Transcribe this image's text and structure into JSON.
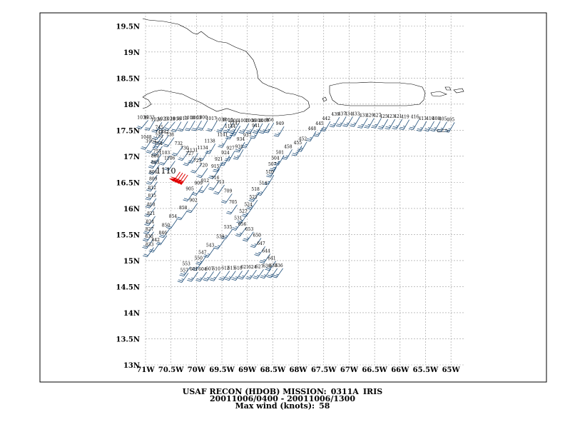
{
  "caption": {
    "title": "USAF RECON (HDOB) MISSION:",
    "mission": "0311A",
    "storm": "IRIS",
    "period": "20011006/0400 - 20011006/1300",
    "max_wind_label": "Max wind (knots):",
    "max_wind_value": "58"
  },
  "map": {
    "lat_range": [
      13,
      19.75
    ],
    "lon_range": [
      -71,
      -64.75
    ],
    "y_ticks": [
      {
        "lat": 19.5,
        "label": "19.5N"
      },
      {
        "lat": 19,
        "label": "19N"
      },
      {
        "lat": 18.5,
        "label": "18.5N"
      },
      {
        "lat": 18,
        "label": "18N"
      },
      {
        "lat": 17.5,
        "label": "17.5N"
      },
      {
        "lat": 17,
        "label": "17N"
      },
      {
        "lat": 16.5,
        "label": "16.5N"
      },
      {
        "lat": 16,
        "label": "16N"
      },
      {
        "lat": 15.5,
        "label": "15.5N"
      },
      {
        "lat": 15,
        "label": "15N"
      },
      {
        "lat": 14.5,
        "label": "14.5N"
      },
      {
        "lat": 14,
        "label": "14N"
      },
      {
        "lat": 13.5,
        "label": "13.5N"
      },
      {
        "lat": 13,
        "label": "13N"
      }
    ],
    "x_ticks": [
      {
        "lon": -71,
        "label": "71W"
      },
      {
        "lon": -70.5,
        "label": "70.5W"
      },
      {
        "lon": -70,
        "label": "70W"
      },
      {
        "lon": -69.5,
        "label": "69.5W"
      },
      {
        "lon": -69,
        "label": "69W"
      },
      {
        "lon": -68.5,
        "label": "68.5W"
      },
      {
        "lon": -68,
        "label": "68W"
      },
      {
        "lon": -67.5,
        "label": "67.5W"
      },
      {
        "lon": -67,
        "label": "67W"
      },
      {
        "lon": -66.5,
        "label": "66.5W"
      },
      {
        "lon": -66,
        "label": "66W"
      },
      {
        "lon": -65.5,
        "label": "65.5W"
      },
      {
        "lon": -65,
        "label": "65W"
      }
    ],
    "grid": true,
    "colors": {
      "barb": "#1f4e79",
      "max_barb": "#e00000",
      "coast": "#000000",
      "grid": "#9a9a9a"
    },
    "max_label": "1110"
  },
  "observations": [
    {
      "t": "1036",
      "lat": 17.69,
      "lon": -70.95,
      "d": 220,
      "s": 20
    },
    {
      "t": "1033",
      "lat": 17.69,
      "lon": -70.82,
      "d": 210,
      "s": 20
    },
    {
      "t": "1026",
      "lat": 17.65,
      "lon": -70.68,
      "d": 210,
      "s": 20
    },
    {
      "t": "1023",
      "lat": 17.66,
      "lon": -70.55,
      "d": 220,
      "s": 20
    },
    {
      "t": "1020",
      "lat": 17.66,
      "lon": -70.42,
      "d": 220,
      "s": 20
    },
    {
      "t": "1016",
      "lat": 17.66,
      "lon": -70.3,
      "d": 210,
      "s": 20
    },
    {
      "t": "1013",
      "lat": 17.67,
      "lon": -70.17,
      "d": 210,
      "s": 20
    },
    {
      "t": "1010",
      "lat": 17.68,
      "lon": -70.03,
      "d": 210,
      "s": 20
    },
    {
      "t": "1003",
      "lat": 17.68,
      "lon": -69.9,
      "d": 210,
      "s": 20
    },
    {
      "t": "1000",
      "lat": 17.69,
      "lon": -69.78,
      "d": 210,
      "s": 20
    },
    {
      "t": "1017",
      "lat": 17.67,
      "lon": -69.6,
      "d": 210,
      "s": 20
    },
    {
      "t": "1030",
      "lat": 17.65,
      "lon": -69.41,
      "d": 210,
      "s": 25
    },
    {
      "t": "1010",
      "lat": 17.64,
      "lon": -69.28,
      "d": 210,
      "s": 25
    },
    {
      "t": "1000",
      "lat": 17.63,
      "lon": -69.17,
      "d": 210,
      "s": 25
    },
    {
      "t": "1003",
      "lat": 17.63,
      "lon": -68.97,
      "d": 210,
      "s": 25
    },
    {
      "t": "1006",
      "lat": 17.63,
      "lon": -68.83,
      "d": 210,
      "s": 25
    },
    {
      "t": "1008",
      "lat": 17.63,
      "lon": -68.7,
      "d": 210,
      "s": 25
    },
    {
      "t": "1009",
      "lat": 17.63,
      "lon": -68.57,
      "d": 210,
      "s": 25
    },
    {
      "t": "956",
      "lat": 17.64,
      "lon": -68.48,
      "d": 210,
      "s": 25
    },
    {
      "t": "949",
      "lat": 17.57,
      "lon": -68.28,
      "d": 210,
      "s": 25
    },
    {
      "t": "745",
      "lat": 17.5,
      "lon": -70.65,
      "d": 215,
      "s": 20
    },
    {
      "t": "748",
      "lat": 17.41,
      "lon": -70.65,
      "d": 215,
      "s": 20
    },
    {
      "t": "742",
      "lat": 17.41,
      "lon": -70.54,
      "d": 215,
      "s": 20
    },
    {
      "t": "751",
      "lat": 17.33,
      "lon": -70.65,
      "d": 215,
      "s": 20
    },
    {
      "t": "738",
      "lat": 17.36,
      "lon": -70.44,
      "d": 215,
      "s": 20
    },
    {
      "t": "1048",
      "lat": 17.31,
      "lon": -70.88,
      "d": 215,
      "s": 20
    },
    {
      "t": "1051",
      "lat": 17.24,
      "lon": -70.78,
      "d": 215,
      "s": 20
    },
    {
      "t": "754",
      "lat": 17.19,
      "lon": -70.67,
      "d": 215,
      "s": 20
    },
    {
      "t": "732",
      "lat": 17.19,
      "lon": -70.27,
      "d": 215,
      "s": 20
    },
    {
      "t": "757",
      "lat": 17.04,
      "lon": -70.69,
      "d": 215,
      "s": 20
    },
    {
      "t": "1103",
      "lat": 17.01,
      "lon": -70.52,
      "d": 215,
      "s": 20
    },
    {
      "t": "800",
      "lat": 16.95,
      "lon": -70.73,
      "d": 215,
      "s": 20
    },
    {
      "t": "1106",
      "lat": 16.91,
      "lon": -70.42,
      "d": 215,
      "s": 20
    },
    {
      "t": "803",
      "lat": 16.83,
      "lon": -70.73,
      "d": 215,
      "s": 20
    },
    {
      "t": "730",
      "lat": 17.1,
      "lon": -70.15,
      "d": 215,
      "s": 20
    },
    {
      "t": "727",
      "lat": 17.0,
      "lon": -70.05,
      "d": 215,
      "s": 20
    },
    {
      "t": "723",
      "lat": 16.86,
      "lon": -69.9,
      "d": 215,
      "s": 20
    },
    {
      "t": "1131",
      "lat": 17.06,
      "lon": -69.97,
      "d": 210,
      "s": 20
    },
    {
      "t": "1134",
      "lat": 17.11,
      "lon": -69.77,
      "d": 210,
      "s": 20
    },
    {
      "t": "1138",
      "lat": 17.24,
      "lon": -69.63,
      "d": 210,
      "s": 25
    },
    {
      "t": "1141",
      "lat": 17.36,
      "lon": -69.38,
      "d": 210,
      "s": 25
    },
    {
      "t": "1144",
      "lat": 17.52,
      "lon": -69.23,
      "d": 210,
      "s": 25
    },
    {
      "t": "1147",
      "lat": 17.58,
      "lon": -69.14,
      "d": 210,
      "s": 25
    },
    {
      "t": "720",
      "lat": 16.77,
      "lon": -69.78,
      "d": 215,
      "s": 20
    },
    {
      "t": "716",
      "lat": 16.53,
      "lon": -69.55,
      "d": 215,
      "s": 20
    },
    {
      "t": "713",
      "lat": 16.45,
      "lon": -69.45,
      "d": 215,
      "s": 20
    },
    {
      "t": "709",
      "lat": 16.28,
      "lon": -69.3,
      "d": 215,
      "s": 20
    },
    {
      "t": "705",
      "lat": 16.07,
      "lon": -69.2,
      "d": 215,
      "s": 20
    },
    {
      "t": "915",
      "lat": 16.75,
      "lon": -69.55,
      "d": 215,
      "s": 20
    },
    {
      "t": "912",
      "lat": 16.48,
      "lon": -69.75,
      "d": 215,
      "s": 20
    },
    {
      "t": "909",
      "lat": 16.43,
      "lon": -69.88,
      "d": 215,
      "s": 20
    },
    {
      "t": "905",
      "lat": 16.32,
      "lon": -70.05,
      "d": 215,
      "s": 20
    },
    {
      "t": "902",
      "lat": 16.1,
      "lon": -69.98,
      "d": 215,
      "s": 20
    },
    {
      "t": "858",
      "lat": 15.96,
      "lon": -70.18,
      "d": 215,
      "s": 20
    },
    {
      "t": "854",
      "lat": 15.79,
      "lon": -70.38,
      "d": 215,
      "s": 20
    },
    {
      "t": "850",
      "lat": 15.62,
      "lon": -70.52,
      "d": 215,
      "s": 20
    },
    {
      "t": "846",
      "lat": 15.48,
      "lon": -70.58,
      "d": 215,
      "s": 20
    },
    {
      "t": "842",
      "lat": 15.34,
      "lon": -70.72,
      "d": 215,
      "s": 20
    },
    {
      "t": "806",
      "lat": 16.64,
      "lon": -70.77,
      "d": 215,
      "s": 20
    },
    {
      "t": "809",
      "lat": 16.51,
      "lon": -70.77,
      "d": 215,
      "s": 20
    },
    {
      "t": "812",
      "lat": 16.34,
      "lon": -70.79,
      "d": 215,
      "s": 20
    },
    {
      "t": "815",
      "lat": 16.19,
      "lon": -70.79,
      "d": 215,
      "s": 20
    },
    {
      "t": "818",
      "lat": 16.02,
      "lon": -70.81,
      "d": 215,
      "s": 20
    },
    {
      "t": "821",
      "lat": 15.85,
      "lon": -70.81,
      "d": 215,
      "s": 20
    },
    {
      "t": "824",
      "lat": 15.69,
      "lon": -70.83,
      "d": 215,
      "s": 20
    },
    {
      "t": "827",
      "lat": 15.55,
      "lon": -70.84,
      "d": 215,
      "s": 20
    },
    {
      "t": "830",
      "lat": 15.41,
      "lon": -70.85,
      "d": 215,
      "s": 20
    },
    {
      "t": "833",
      "lat": 15.25,
      "lon": -70.84,
      "d": 215,
      "s": 20
    },
    {
      "t": "921",
      "lat": 16.89,
      "lon": -69.48,
      "d": 210,
      "s": 25
    },
    {
      "t": "924",
      "lat": 17.01,
      "lon": -69.35,
      "d": 210,
      "s": 25
    },
    {
      "t": "927",
      "lat": 17.1,
      "lon": -69.25,
      "d": 210,
      "s": 25
    },
    {
      "t": "931",
      "lat": 17.13,
      "lon": -69.08,
      "d": 210,
      "s": 25
    },
    {
      "t": "934",
      "lat": 17.27,
      "lon": -69.05,
      "d": 210,
      "s": 25
    },
    {
      "t": "937",
      "lat": 17.35,
      "lon": -68.92,
      "d": 210,
      "s": 25
    },
    {
      "t": "941",
      "lat": 17.53,
      "lon": -68.75,
      "d": 210,
      "s": 25
    },
    {
      "t": "452",
      "lat": 17.28,
      "lon": -67.83,
      "d": 210,
      "s": 25
    },
    {
      "t": "455",
      "lat": 17.2,
      "lon": -67.93,
      "d": 210,
      "s": 25
    },
    {
      "t": "458",
      "lat": 17.13,
      "lon": -68.12,
      "d": 210,
      "s": 25
    },
    {
      "t": "501",
      "lat": 17.02,
      "lon": -68.28,
      "d": 210,
      "s": 25
    },
    {
      "t": "504",
      "lat": 16.91,
      "lon": -68.37,
      "d": 210,
      "s": 25
    },
    {
      "t": "507",
      "lat": 16.79,
      "lon": -68.43,
      "d": 210,
      "s": 25
    },
    {
      "t": "510",
      "lat": 16.64,
      "lon": -68.48,
      "d": 210,
      "s": 25
    },
    {
      "t": "514",
      "lat": 16.43,
      "lon": -68.61,
      "d": 215,
      "s": 25
    },
    {
      "t": "518",
      "lat": 16.31,
      "lon": -68.76,
      "d": 215,
      "s": 25
    },
    {
      "t": "521",
      "lat": 16.16,
      "lon": -68.8,
      "d": 215,
      "s": 25
    },
    {
      "t": "524",
      "lat": 16.02,
      "lon": -68.9,
      "d": 215,
      "s": 25
    },
    {
      "t": "527",
      "lat": 15.89,
      "lon": -69.0,
      "d": 215,
      "s": 25
    },
    {
      "t": "531",
      "lat": 15.76,
      "lon": -69.1,
      "d": 215,
      "s": 25
    },
    {
      "t": "535",
      "lat": 15.59,
      "lon": -69.3,
      "d": 215,
      "s": 25
    },
    {
      "t": "539",
      "lat": 15.4,
      "lon": -69.45,
      "d": 215,
      "s": 25
    },
    {
      "t": "543",
      "lat": 15.24,
      "lon": -69.65,
      "d": 215,
      "s": 25
    },
    {
      "t": "547",
      "lat": 15.1,
      "lon": -69.8,
      "d": 215,
      "s": 25
    },
    {
      "t": "550",
      "lat": 14.99,
      "lon": -69.88,
      "d": 215,
      "s": 25
    },
    {
      "t": "553",
      "lat": 14.88,
      "lon": -70.12,
      "d": 215,
      "s": 25
    },
    {
      "t": "557",
      "lat": 14.76,
      "lon": -70.16,
      "d": 215,
      "s": 25
    },
    {
      "t": "601",
      "lat": 14.78,
      "lon": -69.97,
      "d": 215,
      "s": 25
    },
    {
      "t": "604",
      "lat": 14.78,
      "lon": -69.8,
      "d": 215,
      "s": 25
    },
    {
      "t": "607",
      "lat": 14.79,
      "lon": -69.66,
      "d": 215,
      "s": 25
    },
    {
      "t": "610",
      "lat": 14.79,
      "lon": -69.53,
      "d": 215,
      "s": 25
    },
    {
      "t": "612",
      "lat": 14.8,
      "lon": -69.35,
      "d": 215,
      "s": 25
    },
    {
      "t": "615",
      "lat": 14.8,
      "lon": -69.23,
      "d": 215,
      "s": 25
    },
    {
      "t": "618",
      "lat": 14.8,
      "lon": -69.1,
      "d": 215,
      "s": 25
    },
    {
      "t": "621",
      "lat": 14.82,
      "lon": -68.97,
      "d": 215,
      "s": 25
    },
    {
      "t": "624",
      "lat": 14.82,
      "lon": -68.82,
      "d": 215,
      "s": 25
    },
    {
      "t": "627",
      "lat": 14.83,
      "lon": -68.68,
      "d": 215,
      "s": 25
    },
    {
      "t": "630",
      "lat": 14.84,
      "lon": -68.54,
      "d": 215,
      "s": 25
    },
    {
      "t": "633",
      "lat": 14.85,
      "lon": -68.41,
      "d": 215,
      "s": 25
    },
    {
      "t": "636",
      "lat": 14.85,
      "lon": -68.3,
      "d": 215,
      "s": 25
    },
    {
      "t": "641",
      "lat": 14.99,
      "lon": -68.44,
      "d": 215,
      "s": 25
    },
    {
      "t": "644",
      "lat": 15.13,
      "lon": -68.55,
      "d": 215,
      "s": 25
    },
    {
      "t": "647",
      "lat": 15.27,
      "lon": -68.65,
      "d": 215,
      "s": 25
    },
    {
      "t": "650",
      "lat": 15.43,
      "lon": -68.73,
      "d": 215,
      "s": 25
    },
    {
      "t": "653",
      "lat": 15.55,
      "lon": -68.88,
      "d": 215,
      "s": 25
    },
    {
      "t": "656",
      "lat": 15.64,
      "lon": -69.02,
      "d": 215,
      "s": 25
    },
    {
      "t": "442",
      "lat": 17.67,
      "lon": -67.37,
      "d": 210,
      "s": 25
    },
    {
      "t": "445",
      "lat": 17.57,
      "lon": -67.5,
      "d": 210,
      "s": 25
    },
    {
      "t": "448",
      "lat": 17.48,
      "lon": -67.65,
      "d": 210,
      "s": 25
    },
    {
      "t": "439",
      "lat": 17.75,
      "lon": -67.19,
      "d": 210,
      "s": 25
    },
    {
      "t": "437",
      "lat": 17.76,
      "lon": -67.06,
      "d": 210,
      "s": 25
    },
    {
      "t": "434",
      "lat": 17.76,
      "lon": -66.93,
      "d": 210,
      "s": 25
    },
    {
      "t": "433",
      "lat": 17.76,
      "lon": -66.79,
      "d": 210,
      "s": 25
    },
    {
      "t": "431",
      "lat": 17.73,
      "lon": -66.64,
      "d": 210,
      "s": 25
    },
    {
      "t": "429",
      "lat": 17.73,
      "lon": -66.51,
      "d": 210,
      "s": 25
    },
    {
      "t": "427",
      "lat": 17.73,
      "lon": -66.37,
      "d": 210,
      "s": 25
    },
    {
      "t": "425",
      "lat": 17.71,
      "lon": -66.24,
      "d": 210,
      "s": 25
    },
    {
      "t": "423",
      "lat": 17.71,
      "lon": -66.1,
      "d": 210,
      "s": 25
    },
    {
      "t": "421",
      "lat": 17.71,
      "lon": -65.96,
      "d": 210,
      "s": 25
    },
    {
      "t": "419",
      "lat": 17.7,
      "lon": -65.82,
      "d": 210,
      "s": 25
    },
    {
      "t": "416",
      "lat": 17.7,
      "lon": -65.63,
      "d": 210,
      "s": 25
    },
    {
      "t": "413",
      "lat": 17.67,
      "lon": -65.48,
      "d": 210,
      "s": 25
    },
    {
      "t": "410",
      "lat": 17.67,
      "lon": -65.33,
      "d": 210,
      "s": 25
    },
    {
      "t": "408",
      "lat": 17.67,
      "lon": -65.21,
      "d": 210,
      "s": 25
    },
    {
      "t": "405",
      "lat": 17.66,
      "lon": -65.08,
      "d": 210,
      "s": 25
    },
    {
      "t": "405",
      "lat": 17.65,
      "lon": -64.93,
      "d": 210,
      "s": 25
    }
  ],
  "max_obs": {
    "t": "1110",
    "lat": 16.7,
    "lon": -70.32,
    "d": 215,
    "s": 58
  }
}
